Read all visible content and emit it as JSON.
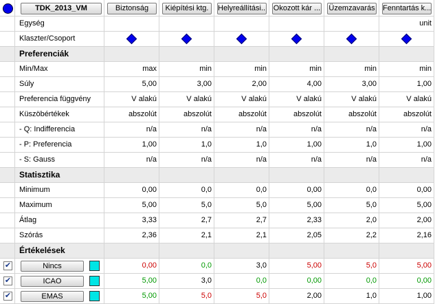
{
  "header": {
    "title": "TDK_2013_VM",
    "criteria": [
      "Biztonság",
      "Kiépítési ktg.",
      "Helyreállítási...",
      "Okozott kár ...",
      "Üzemzavarás",
      "Fenntartás k..."
    ]
  },
  "unit_row": {
    "label": "Egység",
    "unit": "unit"
  },
  "cluster_row": {
    "label": "Klaszter/Csoport"
  },
  "sections": [
    {
      "title": "Preferenciák",
      "rows": [
        {
          "label": "Min/Max",
          "cells": [
            "max",
            "min",
            "min",
            "min",
            "min",
            "min"
          ]
        },
        {
          "label": "Súly",
          "cells": [
            "5,00",
            "3,00",
            "2,00",
            "4,00",
            "3,00",
            "1,00"
          ]
        },
        {
          "label": "Preferencia függvény",
          "cells": [
            "V alakú",
            "V alakú",
            "V alakú",
            "V alakú",
            "V alakú",
            "V alakú"
          ]
        },
        {
          "label": "Küszöbértékek",
          "cells": [
            "abszolút",
            "abszolút",
            "abszolút",
            "abszolút",
            "abszolút",
            "abszolút"
          ]
        },
        {
          "label": "- Q: Indifferencia",
          "cells": [
            "n/a",
            "n/a",
            "n/a",
            "n/a",
            "n/a",
            "n/a"
          ]
        },
        {
          "label": "- P: Preferencia",
          "cells": [
            "1,00",
            "1,0",
            "1,0",
            "1,00",
            "1,0",
            "1,00"
          ]
        },
        {
          "label": "- S: Gauss",
          "cells": [
            "n/a",
            "n/a",
            "n/a",
            "n/a",
            "n/a",
            "n/a"
          ]
        }
      ]
    },
    {
      "title": "Statisztika",
      "rows": [
        {
          "label": "Minimum",
          "cells": [
            "0,00",
            "0,0",
            "0,0",
            "0,00",
            "0,0",
            "0,00"
          ]
        },
        {
          "label": "Maximum",
          "cells": [
            "5,00",
            "5,0",
            "5,0",
            "5,00",
            "5,0",
            "5,00"
          ]
        },
        {
          "label": "Átlag",
          "cells": [
            "3,33",
            "2,7",
            "2,7",
            "2,33",
            "2,0",
            "2,00"
          ]
        },
        {
          "label": "Szórás",
          "cells": [
            "2,36",
            "2,1",
            "2,1",
            "2,05",
            "2,2",
            "2,16"
          ]
        }
      ]
    },
    {
      "title": "Értékelések",
      "actions": [
        {
          "name": "Nincs",
          "checked": true,
          "cells": [
            "0,00",
            "0,0",
            "3,0",
            "5,00",
            "5,0",
            "5,00"
          ],
          "colors": [
            "#cc0000",
            "#009900",
            "#000000",
            "#cc0000",
            "#cc0000",
            "#cc0000"
          ]
        },
        {
          "name": "ICAO",
          "checked": true,
          "cells": [
            "5,00",
            "3,0",
            "0,0",
            "0,00",
            "0,0",
            "0,00"
          ],
          "colors": [
            "#009900",
            "#000000",
            "#009900",
            "#009900",
            "#009900",
            "#009900"
          ]
        },
        {
          "name": "EMAS",
          "checked": true,
          "cells": [
            "5,00",
            "5,0",
            "5,0",
            "2,00",
            "1,0",
            "1,00"
          ],
          "colors": [
            "#009900",
            "#cc0000",
            "#cc0000",
            "#000000",
            "#000000",
            "#000000"
          ]
        }
      ]
    }
  ]
}
